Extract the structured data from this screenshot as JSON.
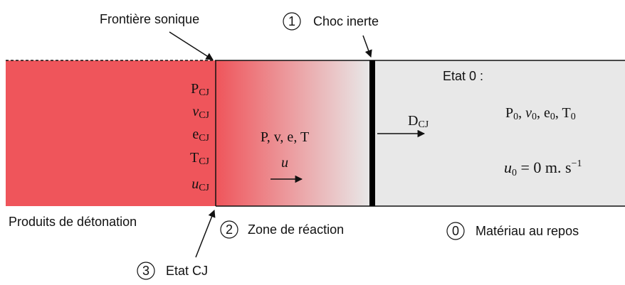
{
  "labels": {
    "sonic_boundary": "Frontière sonique",
    "inert_shock": {
      "number": "1",
      "text": "Choc inerte"
    },
    "products": "Produits de détonation",
    "reaction_zone": {
      "number": "2",
      "text": "Zone de réaction"
    },
    "rest_material": {
      "number": "0",
      "text": "Matériau au repos"
    },
    "cj_state": {
      "number": "3",
      "text": "Etat CJ"
    },
    "state0_title": "Etat 0 :"
  },
  "cj_variables": [
    {
      "base": "P",
      "sub": "CJ"
    },
    {
      "base": "v",
      "sub": "CJ"
    },
    {
      "base": "e",
      "sub": "CJ"
    },
    {
      "base": "T",
      "sub": "CJ"
    },
    {
      "base": "u",
      "sub": "CJ"
    }
  ],
  "reaction_variables": "P, v, e, T",
  "reaction_velocity": "u",
  "shock_velocity": {
    "base": "D",
    "sub": "CJ"
  },
  "state0_variables": {
    "items": [
      {
        "base": "P",
        "sub": "0"
      },
      {
        "base": "v",
        "sub": "0"
      },
      {
        "base": "e",
        "sub": "0"
      },
      {
        "base": "T",
        "sub": "0"
      }
    ],
    "separator": ", "
  },
  "state0_velocity": {
    "base": "u",
    "sub": "0",
    "rhs": " = 0 m. s",
    "sup": "−1"
  }
}
